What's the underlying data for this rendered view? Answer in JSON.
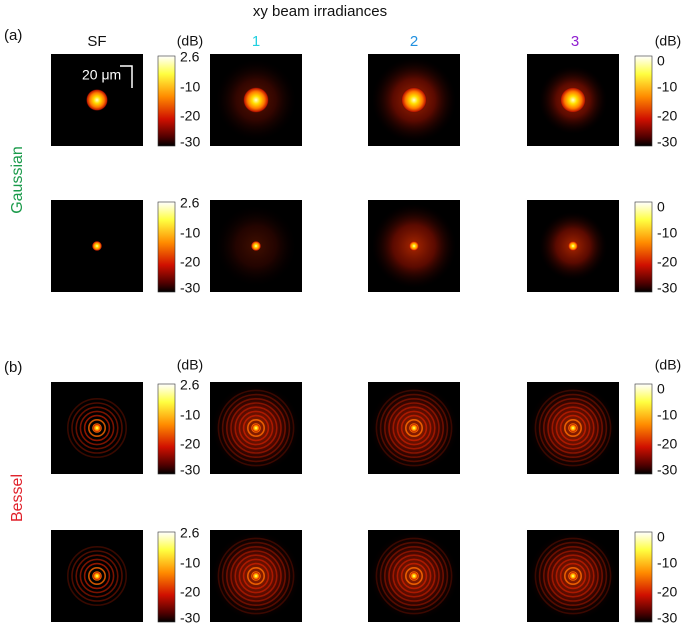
{
  "title": "xy beam irradiances",
  "panels": [
    {
      "label": "(a)",
      "row_label": "Gaussian"
    },
    {
      "label": "(b)",
      "row_label": "Bessel"
    }
  ],
  "columns": [
    "SF",
    "1",
    "2",
    "3"
  ],
  "unit": "(dB)",
  "colorbar_sf": [
    "2.6",
    "-10",
    "-20",
    "-30"
  ],
  "colorbar_3": [
    "0",
    "-10",
    "-20",
    "-30"
  ],
  "scale_bar": "20 μm"
}
